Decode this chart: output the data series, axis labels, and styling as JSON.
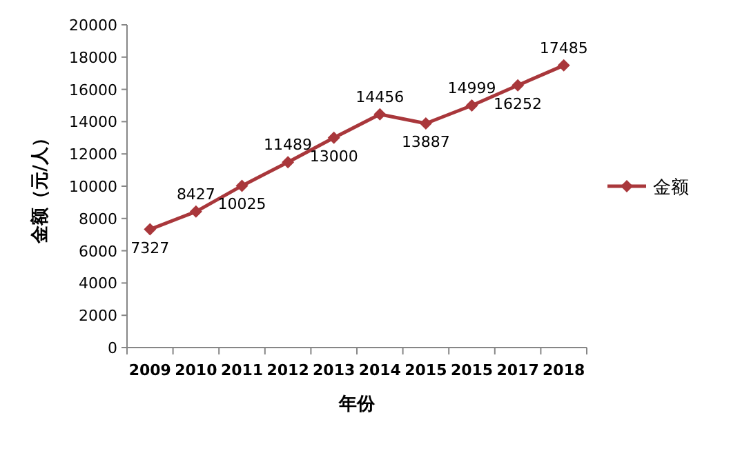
{
  "chart_data": {
    "type": "line",
    "categories": [
      "2009",
      "2010",
      "2011",
      "2012",
      "2013",
      "2014",
      "2015",
      "2015",
      "2017",
      "2018"
    ],
    "series": [
      {
        "name": "金额",
        "color": "#a9373b",
        "values": [
          7327,
          8427,
          10025,
          11489,
          13000,
          14456,
          13887,
          14999,
          16252,
          17485
        ]
      }
    ],
    "xlabel": "年份",
    "ylabel": "金额（元/人）",
    "ylim": [
      0,
      20000
    ],
    "yticks": [
      0,
      2000,
      4000,
      6000,
      8000,
      10000,
      12000,
      14000,
      16000,
      18000,
      20000
    ],
    "data_labels": true,
    "legend": "right",
    "marker": "diamond",
    "line_style": "solid",
    "grid": false
  }
}
